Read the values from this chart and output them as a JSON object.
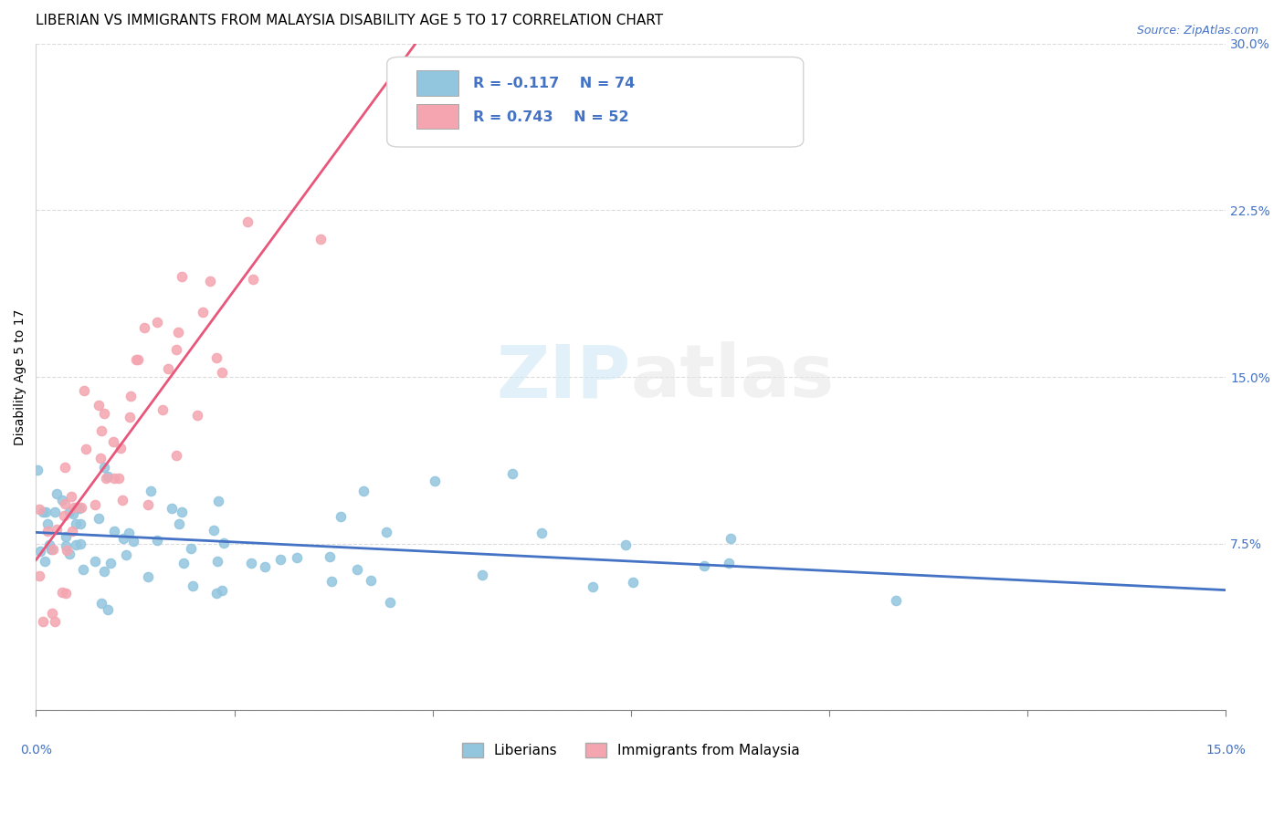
{
  "title": "LIBERIAN VS IMMIGRANTS FROM MALAYSIA DISABILITY AGE 5 TO 17 CORRELATION CHART",
  "source": "Source: ZipAtlas.com",
  "ylabel": "Disability Age 5 to 17",
  "x_range": [
    0.0,
    0.15
  ],
  "y_range": [
    0.0,
    0.3
  ],
  "liberian_R": -0.117,
  "liberian_N": 74,
  "malaysia_R": 0.743,
  "malaysia_N": 52,
  "liberian_color": "#92C5DE",
  "malaysia_color": "#F4A5B0",
  "liberian_line_color": "#4472C4",
  "malaysia_line_color": "#E8567A",
  "watermark_zip": "ZIP",
  "watermark_atlas": "atlas",
  "legend_label_1": "Liberians",
  "legend_label_2": "Immigrants from Malaysia"
}
